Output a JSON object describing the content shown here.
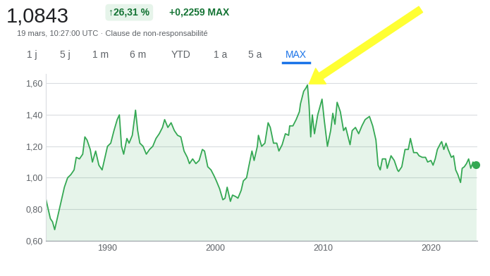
{
  "chart_data": {
    "type": "line",
    "title": "1,0843",
    "subtitle": "19 mars, 10:27:00 UTC · Clause de non-responsabilité",
    "annotations": [
      "↑26,31 %",
      "+0,2259 MAX"
    ],
    "tabs": [
      "1 j",
      "5 j",
      "1 m",
      "6 m",
      "YTD",
      "1 a",
      "5 a",
      "MAX"
    ],
    "x": [
      1984.3,
      1984.5,
      1984.7,
      1984.9,
      1985.1,
      1985.2,
      1985.4,
      1985.6,
      1985.8,
      1986.0,
      1986.3,
      1986.6,
      1986.9,
      1987.1,
      1987.4,
      1987.7,
      1987.9,
      1988.1,
      1988.4,
      1988.6,
      1988.9,
      1989.2,
      1989.5,
      1989.8,
      1990.0,
      1990.3,
      1990.6,
      1990.9,
      1991.1,
      1991.3,
      1991.5,
      1991.8,
      1992.0,
      1992.3,
      1992.6,
      1992.8,
      1993.0,
      1993.3,
      1993.6,
      1993.9,
      1994.2,
      1994.5,
      1994.8,
      1995.1,
      1995.3,
      1995.6,
      1995.9,
      1996.2,
      1996.5,
      1996.8,
      1997.1,
      1997.4,
      1997.6,
      1997.9,
      1998.2,
      1998.5,
      1998.8,
      1999.0,
      1999.3,
      1999.6,
      1999.9,
      2000.1,
      2000.4,
      2000.7,
      2000.9,
      2001.1,
      2001.4,
      2001.6,
      2001.9,
      2002.1,
      2002.4,
      2002.6,
      2002.9,
      2003.1,
      2003.4,
      2003.6,
      2003.9,
      2004.0,
      2004.3,
      2004.6,
      2004.9,
      2005.1,
      2005.4,
      2005.7,
      2005.9,
      2006.2,
      2006.5,
      2006.8,
      2006.9,
      2007.2,
      2007.5,
      2007.8,
      2007.9,
      2008.2,
      2008.4,
      2008.55,
      2008.7,
      2008.85,
      2009.0,
      2009.2,
      2009.5,
      2009.9,
      2010.1,
      2010.4,
      2010.7,
      2010.9,
      2011.1,
      2011.3,
      2011.6,
      2011.9,
      2012.1,
      2012.5,
      2012.7,
      2013.0,
      2013.3,
      2013.6,
      2013.9,
      2014.3,
      2014.6,
      2014.9,
      2015.1,
      2015.3,
      2015.5,
      2015.8,
      2015.95,
      2016.3,
      2016.6,
      2016.9,
      2017.0,
      2017.3,
      2017.6,
      2017.9,
      2018.1,
      2018.4,
      2018.7,
      2018.9,
      2019.2,
      2019.5,
      2019.7,
      2020.0,
      2020.2,
      2020.4,
      2020.6,
      2020.9,
      2021.0,
      2021.2,
      2021.4,
      2021.6,
      2021.9,
      2022.1,
      2022.3,
      2022.5,
      2022.75,
      2022.9,
      2023.1,
      2023.3,
      2023.5,
      2023.7,
      2023.9,
      2024.05,
      2024.2
    ],
    "series": [
      {
        "name": "MAX",
        "color": "#34a853",
        "values": [
          0.86,
          0.8,
          0.74,
          0.72,
          0.67,
          0.7,
          0.76,
          0.82,
          0.88,
          0.94,
          1.0,
          1.02,
          1.05,
          1.13,
          1.12,
          1.15,
          1.26,
          1.24,
          1.18,
          1.1,
          1.17,
          1.08,
          1.05,
          1.14,
          1.2,
          1.22,
          1.3,
          1.37,
          1.4,
          1.2,
          1.15,
          1.25,
          1.22,
          1.27,
          1.43,
          1.3,
          1.22,
          1.2,
          1.15,
          1.18,
          1.2,
          1.25,
          1.28,
          1.32,
          1.37,
          1.32,
          1.35,
          1.3,
          1.27,
          1.26,
          1.17,
          1.13,
          1.09,
          1.12,
          1.09,
          1.11,
          1.18,
          1.17,
          1.07,
          1.05,
          1.01,
          0.98,
          0.93,
          0.86,
          0.87,
          0.94,
          0.85,
          0.89,
          0.88,
          0.87,
          0.92,
          0.98,
          1.0,
          1.07,
          1.17,
          1.11,
          1.2,
          1.27,
          1.2,
          1.22,
          1.35,
          1.32,
          1.22,
          1.22,
          1.17,
          1.21,
          1.28,
          1.27,
          1.33,
          1.33,
          1.37,
          1.42,
          1.47,
          1.55,
          1.57,
          1.59,
          1.46,
          1.26,
          1.4,
          1.28,
          1.4,
          1.5,
          1.37,
          1.2,
          1.3,
          1.41,
          1.34,
          1.48,
          1.42,
          1.3,
          1.32,
          1.21,
          1.3,
          1.32,
          1.28,
          1.33,
          1.37,
          1.39,
          1.33,
          1.24,
          1.08,
          1.05,
          1.12,
          1.12,
          1.06,
          1.14,
          1.11,
          1.05,
          1.04,
          1.07,
          1.18,
          1.18,
          1.25,
          1.16,
          1.16,
          1.14,
          1.13,
          1.13,
          1.1,
          1.11,
          1.08,
          1.12,
          1.18,
          1.22,
          1.23,
          1.18,
          1.22,
          1.18,
          1.13,
          1.14,
          1.05,
          1.02,
          0.97,
          1.06,
          1.07,
          1.09,
          1.12,
          1.06,
          1.1,
          1.09,
          1.0843
        ]
      }
    ],
    "xlim": [
      1984.3,
      2024.3
    ],
    "xticks": [
      1990,
      2000,
      2010,
      2020
    ],
    "ylim": [
      0.6,
      1.66
    ],
    "yticks": [
      {
        "value": 0.6,
        "label": "0,60"
      },
      {
        "value": 0.8,
        "label": "0,80"
      },
      {
        "value": 1.0,
        "label": "1,00"
      },
      {
        "value": 1.2,
        "label": "1,20"
      },
      {
        "value": 1.4,
        "label": "1,40"
      },
      {
        "value": 1.6,
        "label": "1,60"
      }
    ],
    "grid": true
  }
}
